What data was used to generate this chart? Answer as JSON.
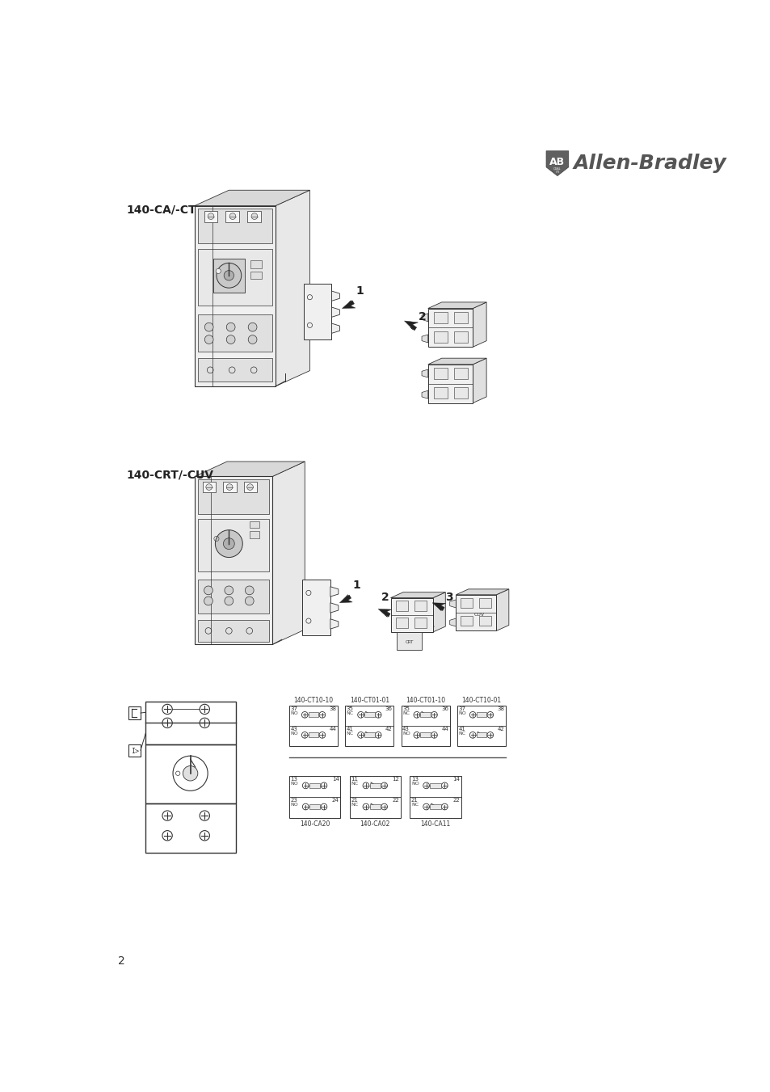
{
  "bg_color": "#ffffff",
  "logo_text": "Allen-Bradley",
  "logo_color": "#555555",
  "page_number": "2",
  "section1_label": "140-CA/-CT",
  "section2_label": "140-CRT/-CUV",
  "title_fontsize": 10,
  "small_fontsize": 5.5,
  "ct_labels": [
    "140-CT10-10",
    "140-CT01-01",
    "140-CT01-10",
    "140-CT10-01"
  ],
  "ca_labels": [
    "140-CA20",
    "140-CA02",
    "140-CA11"
  ],
  "ct_box_texts": [
    [
      "37",
      "NO",
      "38",
      "43",
      "NO",
      "44"
    ],
    [
      "35",
      "NC",
      "36",
      "41",
      "NC",
      "42"
    ],
    [
      "35",
      "NC",
      "36",
      "43",
      "NO",
      "44"
    ],
    [
      "37",
      "NO",
      "38",
      "41",
      "NC",
      "42"
    ]
  ],
  "ca_box_texts": [
    [
      "13",
      "NO",
      "14",
      "23",
      "NO",
      "24"
    ],
    [
      "11",
      "NC",
      "12",
      "21",
      "NC",
      "22"
    ],
    [
      "13",
      "NO",
      "14",
      "21",
      "NC",
      "22"
    ]
  ]
}
